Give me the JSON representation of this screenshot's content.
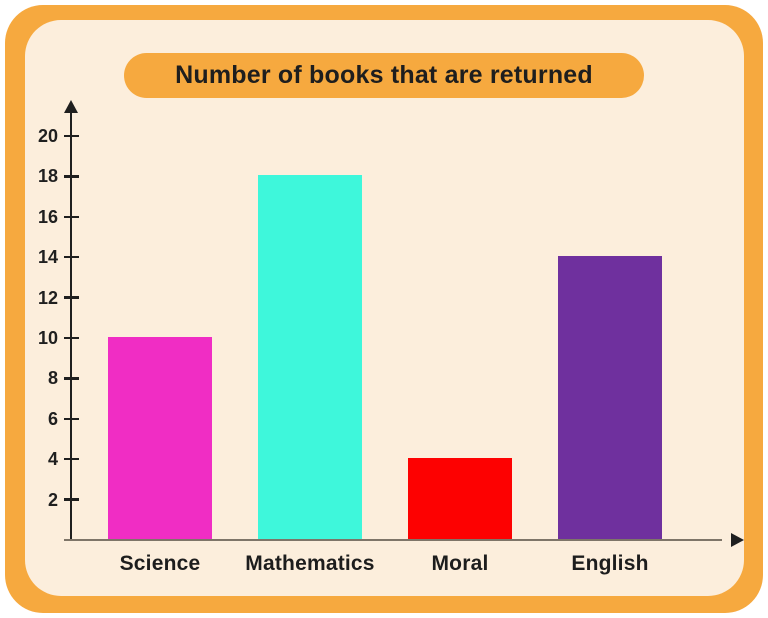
{
  "page": {
    "background_color": "#FFFFFF",
    "frame_color": "#F6A93F",
    "card_color": "#FCEEDC"
  },
  "title": {
    "text": "Number of books that are returned",
    "pill_color": "#F6A93F",
    "text_color": "#1E1E1E"
  },
  "chart_data": {
    "type": "bar",
    "title": "Number of books that are returned",
    "categories": [
      "Science",
      "Mathematics",
      "Moral",
      "English"
    ],
    "values": [
      10,
      18,
      4,
      14
    ],
    "bar_colors": [
      "#F02DC4",
      "#3EF7DB",
      "#FD0101",
      "#6F309E"
    ],
    "yticks": [
      2,
      4,
      6,
      8,
      10,
      12,
      14,
      16,
      18,
      20
    ],
    "ylim": [
      0,
      21
    ],
    "xlabel": "",
    "ylabel": "",
    "grid": false,
    "legend": "none",
    "axis_color": "#1F1F1F",
    "x_axis_line_color": "#7E7568",
    "tick_label_color": "#1F1F1F",
    "category_label_color": "#1D1D1D"
  }
}
